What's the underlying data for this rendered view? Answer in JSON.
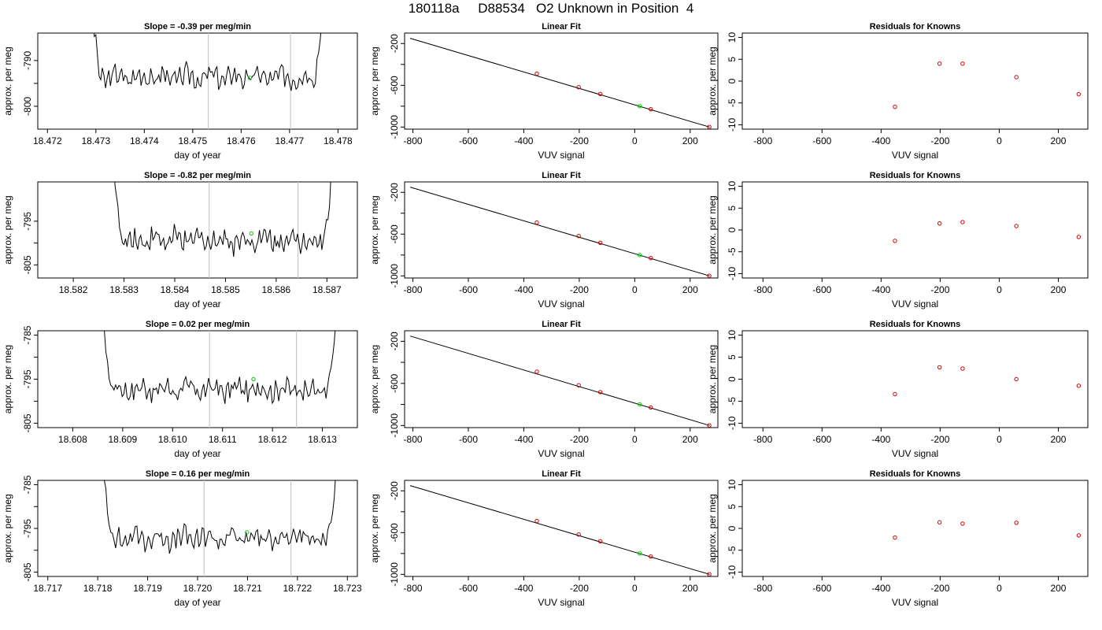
{
  "title": "180118a     D88534   O2 Unknown in Position  4",
  "colors": {
    "series_line": "#000000",
    "known_point": "#cc0000",
    "unknown_point": "#00cc00",
    "marker_line": "#c8c8c8"
  },
  "chart_data": [
    {
      "type": "line",
      "title": "Slope =  -0.39  per meg/min",
      "xlabel": "day of year",
      "ylabel": "approx. per meg",
      "xlim": [
        18.4718,
        18.4784
      ],
      "ylim": [
        -805,
        -784
      ],
      "xticks": [
        {
          "v": 18.472,
          "label": "18.472"
        },
        {
          "v": 18.473,
          "label": "18.473"
        },
        {
          "v": 18.474,
          "label": "18.474"
        },
        {
          "v": 18.475,
          "label": "18.475"
        },
        {
          "v": 18.476,
          "label": "18.476"
        },
        {
          "v": 18.477,
          "label": "18.477"
        },
        {
          "v": 18.478,
          "label": "18.478"
        }
      ],
      "yticks": [
        {
          "v": -790,
          "label": "-790"
        },
        {
          "v": -795,
          "label": ""
        },
        {
          "v": -800,
          "label": "-800"
        }
      ],
      "trace": {
        "start": 18.4728,
        "end": 18.4778,
        "base": -793.6,
        "amp": 2.2
      },
      "marker_x": [
        18.47532,
        18.47702
      ],
      "unknown_point": {
        "x": 18.47618,
        "y": -793.8
      }
    },
    {
      "type": "line",
      "title": "Slope =  -0.82  per meg/min",
      "xlabel": "day of year",
      "ylabel": "approx. per meg",
      "xlim": [
        18.5813,
        18.5876
      ],
      "ylim": [
        -808,
        -786
      ],
      "xticks": [
        {
          "v": 18.582,
          "label": "18.582"
        },
        {
          "v": 18.583,
          "label": "18.583"
        },
        {
          "v": 18.584,
          "label": "18.584"
        },
        {
          "v": 18.585,
          "label": "18.585"
        },
        {
          "v": 18.586,
          "label": "18.586"
        },
        {
          "v": 18.587,
          "label": "18.587"
        }
      ],
      "yticks": [
        {
          "v": -795,
          "label": "-795"
        },
        {
          "v": -800,
          "label": ""
        },
        {
          "v": -805,
          "label": "-805"
        }
      ],
      "trace": {
        "start": 18.5827,
        "end": 18.5872,
        "base": -799.3,
        "amp": 2.4
      },
      "marker_x": [
        18.58468,
        18.58643
      ],
      "unknown_point": {
        "x": 18.58551,
        "y": -797.8
      }
    },
    {
      "type": "line",
      "title": "Slope =  0.02  per meg/min",
      "xlabel": "day of year",
      "ylabel": "approx. per meg",
      "xlim": [
        18.6073,
        18.6137
      ],
      "ylim": [
        -806,
        -784
      ],
      "xticks": [
        {
          "v": 18.608,
          "label": "18.608"
        },
        {
          "v": 18.609,
          "label": "18.609"
        },
        {
          "v": 18.61,
          "label": "18.610"
        },
        {
          "v": 18.611,
          "label": "18.611"
        },
        {
          "v": 18.612,
          "label": "18.612"
        },
        {
          "v": 18.613,
          "label": "18.613"
        }
      ],
      "yticks": [
        {
          "v": -785,
          "label": "-785"
        },
        {
          "v": -790,
          "label": ""
        },
        {
          "v": -795,
          "label": "-795"
        },
        {
          "v": -800,
          "label": ""
        },
        {
          "v": -805,
          "label": "-805"
        }
      ],
      "trace": {
        "start": 18.6085,
        "end": 18.6134,
        "base": -797.3,
        "amp": 2.2
      },
      "marker_x": [
        18.61074,
        18.61248
      ],
      "unknown_point": {
        "x": 18.61162,
        "y": -795.0
      }
    },
    {
      "type": "line",
      "title": "Slope =  0.16  per meg/min",
      "xlabel": "day of year",
      "ylabel": "approx. per meg",
      "xlim": [
        18.7168,
        18.7232
      ],
      "ylim": [
        -806,
        -784
      ],
      "xticks": [
        {
          "v": 18.717,
          "label": "18.717"
        },
        {
          "v": 18.718,
          "label": "18.718"
        },
        {
          "v": 18.719,
          "label": "18.719"
        },
        {
          "v": 18.72,
          "label": "18.720"
        },
        {
          "v": 18.721,
          "label": "18.721"
        },
        {
          "v": 18.722,
          "label": "18.722"
        },
        {
          "v": 18.723,
          "label": "18.723"
        }
      ],
      "yticks": [
        {
          "v": -785,
          "label": "-785"
        },
        {
          "v": -790,
          "label": ""
        },
        {
          "v": -795,
          "label": "-795"
        },
        {
          "v": -800,
          "label": ""
        },
        {
          "v": -805,
          "label": "-805"
        }
      ],
      "trace": {
        "start": 18.718,
        "end": 18.7229,
        "base": -797.2,
        "amp": 2.3
      },
      "marker_x": [
        18.72013,
        18.72187
      ],
      "unknown_point": {
        "x": 18.72099,
        "y": -795.9
      }
    },
    {
      "type": "scatter",
      "title": "Linear Fit",
      "xlabel": "VUV signal",
      "ylabel": "approx. per meg",
      "xlim": [
        -830,
        300
      ],
      "ylim": [
        -1020,
        -100
      ],
      "xticks": [
        {
          "v": -800,
          "label": "-800"
        },
        {
          "v": -600,
          "label": "-600"
        },
        {
          "v": -400,
          "label": "-400"
        },
        {
          "v": -200,
          "label": "-200"
        },
        {
          "v": 0,
          "label": "0"
        },
        {
          "v": 200,
          "label": "200"
        }
      ],
      "yticks": [
        {
          "v": -200,
          "label": "-200"
        },
        {
          "v": -400,
          "label": ""
        },
        {
          "v": -600,
          "label": "-600"
        },
        {
          "v": -800,
          "label": ""
        },
        {
          "v": -1000,
          "label": "-1000"
        }
      ],
      "fit_line": {
        "x": [
          -810,
          270
        ],
        "y": [
          -150,
          -1000
        ]
      },
      "known_points": {
        "x": [
          -353,
          -202,
          -124,
          58,
          269
        ],
        "y": [
          -489,
          -618,
          -683,
          -829,
          -999
        ]
      },
      "unknown_point": {
        "x": 18,
        "y": -800
      }
    },
    {
      "type": "scatter",
      "title": "Linear Fit",
      "xlabel": "VUV signal",
      "ylabel": "approx. per meg",
      "xlim": [
        -830,
        300
      ],
      "ylim": [
        -1020,
        -100
      ],
      "xticks": [
        {
          "v": -800,
          "label": "-800"
        },
        {
          "v": -600,
          "label": "-600"
        },
        {
          "v": -400,
          "label": "-400"
        },
        {
          "v": -200,
          "label": "-200"
        },
        {
          "v": 0,
          "label": "0"
        },
        {
          "v": 200,
          "label": "200"
        }
      ],
      "yticks": [
        {
          "v": -200,
          "label": "-200"
        },
        {
          "v": -400,
          "label": ""
        },
        {
          "v": -600,
          "label": "-600"
        },
        {
          "v": -800,
          "label": ""
        },
        {
          "v": -1000,
          "label": "-1000"
        }
      ],
      "fit_line": {
        "x": [
          -810,
          270
        ],
        "y": [
          -150,
          -1000
        ]
      },
      "known_points": {
        "x": [
          -353,
          -202,
          -124,
          58,
          269
        ],
        "y": [
          -489,
          -618,
          -683,
          -829,
          -999
        ]
      },
      "unknown_point": {
        "x": 18,
        "y": -800
      }
    },
    {
      "type": "scatter",
      "title": "Linear Fit",
      "xlabel": "VUV signal",
      "ylabel": "approx. per meg",
      "xlim": [
        -830,
        300
      ],
      "ylim": [
        -1020,
        -100
      ],
      "xticks": [
        {
          "v": -800,
          "label": "-800"
        },
        {
          "v": -600,
          "label": "-600"
        },
        {
          "v": -400,
          "label": "-400"
        },
        {
          "v": -200,
          "label": "-200"
        },
        {
          "v": 0,
          "label": "0"
        },
        {
          "v": 200,
          "label": "200"
        }
      ],
      "yticks": [
        {
          "v": -200,
          "label": "-200"
        },
        {
          "v": -400,
          "label": ""
        },
        {
          "v": -600,
          "label": "-600"
        },
        {
          "v": -800,
          "label": ""
        },
        {
          "v": -1000,
          "label": "-1000"
        }
      ],
      "fit_line": {
        "x": [
          -810,
          270
        ],
        "y": [
          -150,
          -1000
        ]
      },
      "known_points": {
        "x": [
          -353,
          -202,
          -124,
          58,
          269
        ],
        "y": [
          -489,
          -618,
          -683,
          -829,
          -999
        ]
      },
      "unknown_point": {
        "x": 18,
        "y": -800
      }
    },
    {
      "type": "scatter",
      "title": "Linear Fit",
      "xlabel": "VUV signal",
      "ylabel": "approx. per meg",
      "xlim": [
        -830,
        300
      ],
      "ylim": [
        -1020,
        -100
      ],
      "xticks": [
        {
          "v": -800,
          "label": "-800"
        },
        {
          "v": -600,
          "label": "-600"
        },
        {
          "v": -400,
          "label": "-400"
        },
        {
          "v": -200,
          "label": "-200"
        },
        {
          "v": 0,
          "label": "0"
        },
        {
          "v": 200,
          "label": "200"
        }
      ],
      "yticks": [
        {
          "v": -200,
          "label": "-200"
        },
        {
          "v": -400,
          "label": ""
        },
        {
          "v": -600,
          "label": "-600"
        },
        {
          "v": -800,
          "label": ""
        },
        {
          "v": -1000,
          "label": "-1000"
        }
      ],
      "fit_line": {
        "x": [
          -810,
          270
        ],
        "y": [
          -150,
          -1000
        ]
      },
      "known_points": {
        "x": [
          -353,
          -202,
          -124,
          58,
          269
        ],
        "y": [
          -489,
          -618,
          -683,
          -829,
          -999
        ]
      },
      "unknown_point": {
        "x": 18,
        "y": -800
      }
    },
    {
      "type": "scatter",
      "title": "Residuals for Knowns",
      "xlabel": "VUV signal",
      "ylabel": "approx. per meg",
      "xlim": [
        -870,
        300
      ],
      "ylim": [
        -11,
        11
      ],
      "xticks": [
        {
          "v": -800,
          "label": "-800"
        },
        {
          "v": -600,
          "label": "-600"
        },
        {
          "v": -400,
          "label": "-400"
        },
        {
          "v": -200,
          "label": "-200"
        },
        {
          "v": 0,
          "label": "0"
        },
        {
          "v": 200,
          "label": "200"
        }
      ],
      "yticks": [
        {
          "v": 10,
          "label": "10"
        },
        {
          "v": 5,
          "label": "5"
        },
        {
          "v": 0,
          "label": "0"
        },
        {
          "v": -5,
          "label": "-5"
        },
        {
          "v": -10,
          "label": "-10"
        }
      ],
      "known_points": {
        "x": [
          -353,
          -202,
          -124,
          58,
          269
        ],
        "y": [
          -5.9,
          4.0,
          4.0,
          0.9,
          -3.0
        ]
      }
    },
    {
      "type": "scatter",
      "title": "Residuals for Knowns",
      "xlabel": "VUV signal",
      "ylabel": "approx. per meg",
      "xlim": [
        -870,
        300
      ],
      "ylim": [
        -11,
        11
      ],
      "xticks": [
        {
          "v": -800,
          "label": "-800"
        },
        {
          "v": -600,
          "label": "-600"
        },
        {
          "v": -400,
          "label": "-400"
        },
        {
          "v": -200,
          "label": "-200"
        },
        {
          "v": 0,
          "label": "0"
        },
        {
          "v": 200,
          "label": "200"
        }
      ],
      "yticks": [
        {
          "v": 10,
          "label": "10"
        },
        {
          "v": 5,
          "label": "5"
        },
        {
          "v": 0,
          "label": "0"
        },
        {
          "v": -5,
          "label": "-5"
        },
        {
          "v": -10,
          "label": "-10"
        }
      ],
      "known_points": {
        "x": [
          -353,
          -202,
          -124,
          58,
          269
        ],
        "y": [
          -2.5,
          1.5,
          1.8,
          0.9,
          -1.6
        ]
      }
    },
    {
      "type": "scatter",
      "title": "Residuals for Knowns",
      "xlabel": "VUV signal",
      "ylabel": "approx. per meg",
      "xlim": [
        -870,
        300
      ],
      "ylim": [
        -11,
        11
      ],
      "xticks": [
        {
          "v": -800,
          "label": "-800"
        },
        {
          "v": -600,
          "label": "-600"
        },
        {
          "v": -400,
          "label": "-400"
        },
        {
          "v": -200,
          "label": "-200"
        },
        {
          "v": 0,
          "label": "0"
        },
        {
          "v": 200,
          "label": "200"
        }
      ],
      "yticks": [
        {
          "v": 10,
          "label": "10"
        },
        {
          "v": 5,
          "label": "5"
        },
        {
          "v": 0,
          "label": "0"
        },
        {
          "v": -5,
          "label": "-5"
        },
        {
          "v": -10,
          "label": "-10"
        }
      ],
      "known_points": {
        "x": [
          -353,
          -202,
          -124,
          58,
          269
        ],
        "y": [
          -3.4,
          2.7,
          2.4,
          0.0,
          -1.5
        ]
      }
    },
    {
      "type": "scatter",
      "title": "Residuals for Knowns",
      "xlabel": "VUV signal",
      "ylabel": "approx. per meg",
      "xlim": [
        -870,
        300
      ],
      "ylim": [
        -11,
        11
      ],
      "xticks": [
        {
          "v": -800,
          "label": "-800"
        },
        {
          "v": -600,
          "label": "-600"
        },
        {
          "v": -400,
          "label": "-400"
        },
        {
          "v": -200,
          "label": "-200"
        },
        {
          "v": 0,
          "label": "0"
        },
        {
          "v": 200,
          "label": "200"
        }
      ],
      "yticks": [
        {
          "v": 10,
          "label": "10"
        },
        {
          "v": 5,
          "label": "5"
        },
        {
          "v": 0,
          "label": "0"
        },
        {
          "v": -5,
          "label": "-5"
        },
        {
          "v": -10,
          "label": "-10"
        }
      ],
      "known_points": {
        "x": [
          -353,
          -202,
          -124,
          58,
          269
        ],
        "y": [
          -2.1,
          1.4,
          1.1,
          1.3,
          -1.6
        ]
      }
    }
  ]
}
